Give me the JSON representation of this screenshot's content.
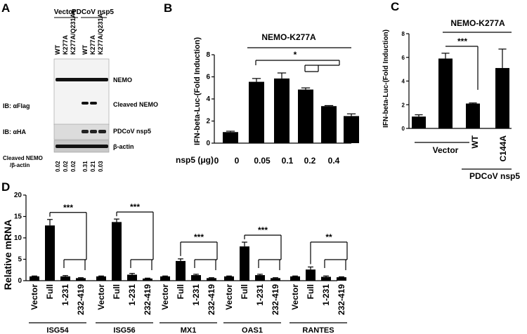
{
  "panel_labels": [
    "A",
    "B",
    "C",
    "D"
  ],
  "panel_a": {
    "group_vector": "Vector",
    "group_nsp5": "PDCoV nsp5",
    "lanes": [
      "WT",
      "K277A",
      "K277A/Q231A",
      "WT",
      "K277A",
      "K277A/Q231A"
    ],
    "ib_flag": "IB: αFlag",
    "ib_ha": "IB: αHA",
    "band_nemo": "NEMO",
    "band_cleaved": "Cleaved NEMO",
    "band_nsp5": "PDCoV nsp5",
    "band_actin": "β-actin",
    "ratio_label_1": "Cleaved NEMO",
    "ratio_label_2": "/β-actin",
    "ratios": [
      "0.02",
      "0.02",
      "0.02",
      "0.31",
      "0.21",
      "0.03"
    ]
  },
  "chart_data": [
    {
      "type": "bar",
      "panel": "B",
      "title": "NEMO-K277A",
      "ylabel": "IFN-beta-Luc-(Fold Induction)",
      "xlabel": "nsp5 (μg)",
      "categories": [
        "0",
        "0",
        "0.05",
        "0.1",
        "0.2",
        "0.4"
      ],
      "values": [
        1.0,
        5.55,
        5.85,
        4.85,
        3.35,
        2.45
      ],
      "errors": [
        0.08,
        0.3,
        0.5,
        0.15,
        0.05,
        0.2
      ],
      "ylim": [
        0,
        8
      ],
      "yticks": [
        "0",
        "2",
        "4",
        "6",
        "8"
      ],
      "significance": "*"
    },
    {
      "type": "bar",
      "panel": "C",
      "title": "NEMO-K277A",
      "ylabel": "IFN-beta-Luc-(Fold Induction)",
      "categories": [
        "",
        "",
        "WT",
        "C144A"
      ],
      "group_labels": [
        "Vector",
        "PDCoV nsp5"
      ],
      "values": [
        1.0,
        5.9,
        2.1,
        5.1
      ],
      "errors": [
        0.15,
        0.45,
        0.05,
        1.6
      ],
      "ylim": [
        0,
        8
      ],
      "yticks": [
        "0",
        "2",
        "4",
        "6",
        "8"
      ],
      "significance": "***"
    },
    {
      "type": "bar",
      "panel": "D",
      "ylabel": "Relative mRNA",
      "ylim": [
        0,
        20
      ],
      "yticks": [
        "0",
        "5",
        "10",
        "15",
        "20"
      ],
      "categories": [
        "Vector",
        "Full",
        "1-231",
        "232-419"
      ],
      "groups": [
        {
          "name": "ISG54",
          "values": [
            1.0,
            12.9,
            1.0,
            0.6
          ],
          "errors": [
            0.1,
            1.4,
            0.2,
            0.1
          ],
          "sig": "***"
        },
        {
          "name": "ISG56",
          "values": [
            1.0,
            13.7,
            1.4,
            0.5
          ],
          "errors": [
            0.1,
            0.7,
            0.3,
            0.1
          ],
          "sig": "***"
        },
        {
          "name": "MX1",
          "values": [
            1.0,
            4.6,
            1.3,
            0.6
          ],
          "errors": [
            0.1,
            0.5,
            0.2,
            0.1
          ],
          "sig": "***"
        },
        {
          "name": "OAS1",
          "values": [
            1.0,
            8.0,
            1.3,
            0.6
          ],
          "errors": [
            0.1,
            1.0,
            0.2,
            0.1
          ],
          "sig": "***"
        },
        {
          "name": "RANTES",
          "values": [
            1.0,
            2.6,
            0.9,
            0.8
          ],
          "errors": [
            0.1,
            0.6,
            0.2,
            0.1
          ],
          "sig": "**"
        }
      ]
    }
  ]
}
